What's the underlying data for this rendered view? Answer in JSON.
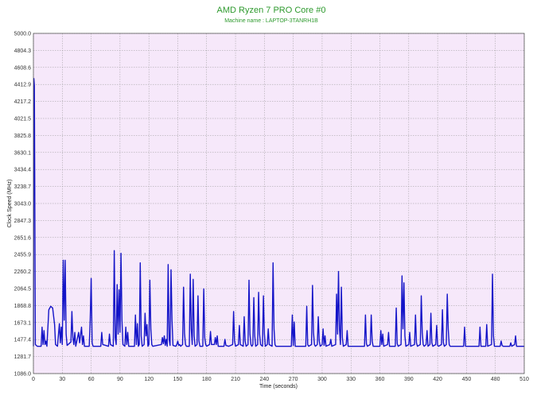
{
  "chart_data": {
    "type": "line",
    "title": "AMD Ryzen 7 PRO Core #0",
    "subtitle": "Machine name : LAPTOP-3TANRH1B",
    "xlabel": "Time (seconds)",
    "ylabel": "Clock Speed (MHz)",
    "xlim": [
      0,
      510
    ],
    "ylim": [
      1086.0,
      5000.0
    ],
    "x_ticks": [
      0,
      30,
      60,
      90,
      120,
      150,
      180,
      210,
      240,
      270,
      300,
      330,
      360,
      390,
      420,
      450,
      480,
      510
    ],
    "y_ticks": [
      1086.0,
      1281.7,
      1477.4,
      1673.1,
      1868.8,
      2064.5,
      2260.2,
      2455.9,
      2651.6,
      2847.3,
      3043.0,
      3238.7,
      3434.4,
      3630.1,
      3825.8,
      4021.5,
      4217.2,
      4412.9,
      4608.6,
      4804.3,
      5000.0
    ],
    "grid": true,
    "colors": {
      "line": "#1414c8",
      "plot_bg": "#f6e8fa",
      "grid": "#9a9a9a",
      "title": "#2e9a2e"
    },
    "series": [
      {
        "name": "",
        "points": [
          [
            0,
            1400
          ],
          [
            0.5,
            4480
          ],
          [
            1,
            4400
          ],
          [
            1.5,
            3000
          ],
          [
            2,
            1420
          ],
          [
            4,
            1400
          ],
          [
            8,
            1400
          ],
          [
            9,
            1620
          ],
          [
            10,
            1420
          ],
          [
            11,
            1580
          ],
          [
            12,
            1420
          ],
          [
            13,
            1460
          ],
          [
            14,
            1400
          ],
          [
            16,
            1820
          ],
          [
            18,
            1860
          ],
          [
            20,
            1840
          ],
          [
            22,
            1650
          ],
          [
            23,
            1420
          ],
          [
            25,
            1400
          ],
          [
            27,
            1660
          ],
          [
            28,
            1440
          ],
          [
            29,
            1620
          ],
          [
            30,
            1420
          ],
          [
            31,
            2390
          ],
          [
            32,
            1700
          ],
          [
            33,
            2390
          ],
          [
            34,
            1540
          ],
          [
            35,
            1410
          ],
          [
            39,
            1450
          ],
          [
            40,
            1800
          ],
          [
            41,
            1500
          ],
          [
            42,
            1420
          ],
          [
            43,
            1560
          ],
          [
            44,
            1400
          ],
          [
            47,
            1560
          ],
          [
            48,
            1440
          ],
          [
            50,
            1620
          ],
          [
            51,
            1420
          ],
          [
            52,
            1520
          ],
          [
            53,
            1400
          ],
          [
            58,
            1400
          ],
          [
            59,
            1700
          ],
          [
            60,
            2180
          ],
          [
            61,
            1440
          ],
          [
            62,
            1400
          ],
          [
            70,
            1400
          ],
          [
            71,
            1560
          ],
          [
            72,
            1420
          ],
          [
            78,
            1400
          ],
          [
            79,
            1540
          ],
          [
            80,
            1420
          ],
          [
            83,
            1400
          ],
          [
            84,
            2500
          ],
          [
            85,
            1500
          ],
          [
            86,
            1420
          ],
          [
            87,
            2110
          ],
          [
            88,
            1540
          ],
          [
            89,
            2050
          ],
          [
            90,
            1560
          ],
          [
            91,
            2470
          ],
          [
            92,
            1700
          ],
          [
            93,
            1420
          ],
          [
            95,
            1400
          ],
          [
            96,
            1620
          ],
          [
            97,
            1420
          ],
          [
            98,
            1560
          ],
          [
            99,
            1400
          ],
          [
            105,
            1400
          ],
          [
            106,
            1760
          ],
          [
            107,
            1420
          ],
          [
            108,
            1660
          ],
          [
            109,
            1400
          ],
          [
            110,
            1420
          ],
          [
            111,
            2360
          ],
          [
            112,
            1520
          ],
          [
            113,
            1400
          ],
          [
            115,
            1420
          ],
          [
            116,
            1780
          ],
          [
            117,
            1520
          ],
          [
            118,
            1650
          ],
          [
            119,
            1400
          ],
          [
            120,
            1420
          ],
          [
            121,
            2160
          ],
          [
            122,
            1600
          ],
          [
            123,
            1420
          ],
          [
            124,
            1400
          ],
          [
            133,
            1420
          ],
          [
            134,
            1500
          ],
          [
            135,
            1430
          ],
          [
            136,
            1520
          ],
          [
            137,
            1410
          ],
          [
            138,
            1480
          ],
          [
            139,
            1400
          ],
          [
            140,
            2340
          ],
          [
            141,
            1480
          ],
          [
            142,
            1410
          ],
          [
            143,
            2280
          ],
          [
            144,
            1700
          ],
          [
            145,
            1410
          ],
          [
            148,
            1400
          ],
          [
            149,
            1420
          ],
          [
            150,
            1460
          ],
          [
            151,
            1410
          ],
          [
            152,
            1420
          ],
          [
            153,
            1400
          ],
          [
            155,
            1420
          ],
          [
            156,
            2080
          ],
          [
            157,
            1550
          ],
          [
            158,
            1420
          ],
          [
            159,
            1400
          ],
          [
            162,
            1400
          ],
          [
            163,
            2230
          ],
          [
            164,
            1600
          ],
          [
            165,
            1420
          ],
          [
            166,
            2170
          ],
          [
            167,
            1520
          ],
          [
            168,
            1400
          ],
          [
            170,
            1420
          ],
          [
            171,
            1980
          ],
          [
            172,
            1460
          ],
          [
            173,
            1400
          ],
          [
            176,
            1400
          ],
          [
            177,
            2060
          ],
          [
            178,
            1500
          ],
          [
            179,
            1420
          ],
          [
            180,
            1400
          ],
          [
            183,
            1420
          ],
          [
            184,
            1570
          ],
          [
            185,
            1420
          ],
          [
            188,
            1420
          ],
          [
            189,
            1500
          ],
          [
            190,
            1420
          ],
          [
            191,
            1520
          ],
          [
            192,
            1400
          ],
          [
            198,
            1400
          ],
          [
            199,
            1480
          ],
          [
            200,
            1410
          ],
          [
            203,
            1400
          ],
          [
            207,
            1420
          ],
          [
            208,
            1800
          ],
          [
            209,
            1460
          ],
          [
            210,
            1400
          ],
          [
            213,
            1420
          ],
          [
            214,
            1640
          ],
          [
            215,
            1420
          ],
          [
            218,
            1400
          ],
          [
            219,
            1740
          ],
          [
            220,
            1460
          ],
          [
            221,
            1400
          ],
          [
            223,
            1420
          ],
          [
            224,
            2160
          ],
          [
            225,
            1540
          ],
          [
            226,
            1420
          ],
          [
            227,
            1400
          ],
          [
            228,
            1420
          ],
          [
            229,
            1960
          ],
          [
            230,
            1520
          ],
          [
            231,
            1400
          ],
          [
            233,
            1420
          ],
          [
            234,
            2020
          ],
          [
            235,
            1540
          ],
          [
            236,
            1420
          ],
          [
            238,
            1400
          ],
          [
            239,
            1980
          ],
          [
            240,
            1540
          ],
          [
            241,
            1400
          ],
          [
            243,
            1420
          ],
          [
            244,
            1600
          ],
          [
            245,
            1420
          ],
          [
            248,
            1400
          ],
          [
            249,
            2360
          ],
          [
            250,
            1600
          ],
          [
            251,
            1420
          ],
          [
            252,
            1400
          ],
          [
            268,
            1400
          ],
          [
            269,
            1760
          ],
          [
            270,
            1410
          ],
          [
            271,
            1680
          ],
          [
            272,
            1400
          ],
          [
            283,
            1400
          ],
          [
            284,
            1860
          ],
          [
            285,
            1420
          ],
          [
            286,
            1400
          ],
          [
            289,
            1420
          ],
          [
            290,
            2100
          ],
          [
            291,
            1560
          ],
          [
            292,
            1420
          ],
          [
            293,
            1400
          ],
          [
            295,
            1420
          ],
          [
            296,
            1740
          ],
          [
            297,
            1460
          ],
          [
            298,
            1400
          ],
          [
            300,
            1420
          ],
          [
            301,
            1600
          ],
          [
            302,
            1410
          ],
          [
            303,
            1520
          ],
          [
            304,
            1400
          ],
          [
            308,
            1420
          ],
          [
            309,
            1480
          ],
          [
            310,
            1400
          ],
          [
            314,
            1420
          ],
          [
            315,
            2000
          ],
          [
            316,
            1540
          ],
          [
            317,
            2260
          ],
          [
            318,
            1600
          ],
          [
            319,
            1420
          ],
          [
            320,
            2080
          ],
          [
            321,
            1500
          ],
          [
            322,
            1400
          ],
          [
            325,
            1420
          ],
          [
            326,
            1580
          ],
          [
            327,
            1400
          ],
          [
            344,
            1400
          ],
          [
            345,
            1760
          ],
          [
            346,
            1430
          ],
          [
            347,
            1400
          ],
          [
            350,
            1420
          ],
          [
            351,
            1760
          ],
          [
            352,
            1460
          ],
          [
            353,
            1400
          ],
          [
            360,
            1400
          ],
          [
            361,
            1580
          ],
          [
            362,
            1420
          ],
          [
            363,
            1540
          ],
          [
            364,
            1400
          ],
          [
            368,
            1420
          ],
          [
            369,
            1560
          ],
          [
            370,
            1400
          ],
          [
            376,
            1400
          ],
          [
            377,
            1840
          ],
          [
            378,
            1430
          ],
          [
            379,
            1400
          ],
          [
            382,
            1420
          ],
          [
            383,
            2210
          ],
          [
            384,
            1600
          ],
          [
            385,
            2130
          ],
          [
            386,
            1520
          ],
          [
            387,
            1400
          ],
          [
            390,
            1420
          ],
          [
            391,
            1560
          ],
          [
            392,
            1400
          ],
          [
            396,
            1420
          ],
          [
            397,
            1760
          ],
          [
            398,
            1440
          ],
          [
            399,
            1400
          ],
          [
            402,
            1420
          ],
          [
            403,
            1980
          ],
          [
            404,
            1560
          ],
          [
            405,
            1420
          ],
          [
            406,
            1400
          ],
          [
            408,
            1420
          ],
          [
            409,
            1580
          ],
          [
            410,
            1400
          ],
          [
            412,
            1420
          ],
          [
            413,
            1780
          ],
          [
            414,
            1440
          ],
          [
            415,
            1400
          ],
          [
            418,
            1420
          ],
          [
            419,
            1640
          ],
          [
            420,
            1410
          ],
          [
            421,
            1400
          ],
          [
            424,
            1420
          ],
          [
            425,
            1820
          ],
          [
            426,
            1440
          ],
          [
            427,
            1400
          ],
          [
            429,
            1420
          ],
          [
            430,
            2000
          ],
          [
            431,
            1600
          ],
          [
            432,
            1420
          ],
          [
            433,
            1400
          ],
          [
            447,
            1400
          ],
          [
            448,
            1620
          ],
          [
            449,
            1400
          ],
          [
            463,
            1400
          ],
          [
            464,
            1620
          ],
          [
            465,
            1400
          ],
          [
            470,
            1400
          ],
          [
            471,
            1650
          ],
          [
            472,
            1400
          ],
          [
            476,
            1420
          ],
          [
            477,
            2230
          ],
          [
            478,
            1520
          ],
          [
            479,
            1400
          ],
          [
            485,
            1400
          ],
          [
            486,
            1460
          ],
          [
            487,
            1410
          ],
          [
            488,
            1400
          ],
          [
            495,
            1400
          ],
          [
            496,
            1440
          ],
          [
            497,
            1400
          ],
          [
            500,
            1420
          ],
          [
            501,
            1520
          ],
          [
            502,
            1400
          ],
          [
            510,
            1400
          ]
        ]
      }
    ]
  }
}
